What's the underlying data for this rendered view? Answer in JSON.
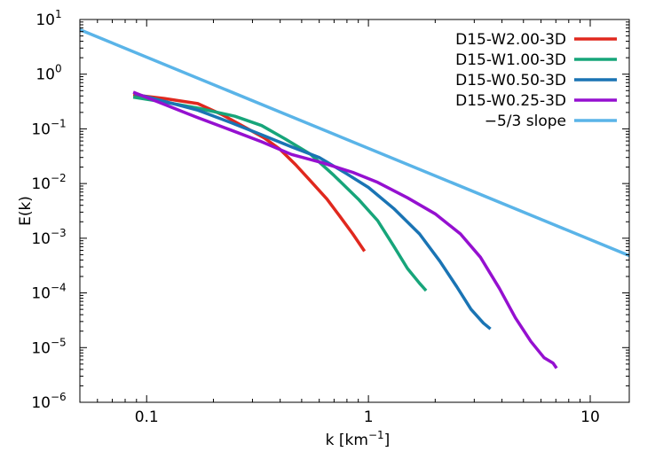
{
  "chart_data": {
    "type": "line",
    "title": "",
    "xlabel": "k [km",
    "xlabel_sup": "−1",
    "xlabel_tail": "]",
    "ylabel": "E(k)",
    "xscale": "log",
    "yscale": "log",
    "xlim": [
      0.05,
      15
    ],
    "ylim": [
      1e-06,
      10
    ],
    "grid": false,
    "legend_position": "top-right",
    "x_ticks": [
      {
        "value": 0.1,
        "label": "0.1"
      },
      {
        "value": 1,
        "label": "1"
      },
      {
        "value": 10,
        "label": "10"
      }
    ],
    "y_ticks": [
      {
        "value": 1e-06,
        "base": "10",
        "exp": "−6"
      },
      {
        "value": 1e-05,
        "base": "10",
        "exp": "−5"
      },
      {
        "value": 0.0001,
        "base": "10",
        "exp": "−4"
      },
      {
        "value": 0.001,
        "base": "10",
        "exp": "−3"
      },
      {
        "value": 0.01,
        "base": "10",
        "exp": "−2"
      },
      {
        "value": 0.1,
        "base": "10",
        "exp": "−1"
      },
      {
        "value": 1,
        "base": "10",
        "exp": "0"
      },
      {
        "value": 10,
        "base": "10",
        "exp": "1"
      }
    ],
    "series": [
      {
        "name": "D15-W2.00-3D",
        "color": "#e0281e",
        "points": [
          [
            0.087,
            0.42
          ],
          [
            0.12,
            0.36
          ],
          [
            0.17,
            0.29
          ],
          [
            0.22,
            0.18
          ],
          [
            0.28,
            0.105
          ],
          [
            0.34,
            0.068
          ],
          [
            0.4,
            0.042
          ],
          [
            0.47,
            0.022
          ],
          [
            0.55,
            0.011
          ],
          [
            0.65,
            0.0052
          ],
          [
            0.75,
            0.0024
          ],
          [
            0.85,
            0.0012
          ],
          [
            0.96,
            0.00058
          ]
        ]
      },
      {
        "name": "D15-W1.00-3D",
        "color": "#17a57a",
        "points": [
          [
            0.087,
            0.38
          ],
          [
            0.12,
            0.31
          ],
          [
            0.17,
            0.24
          ],
          [
            0.25,
            0.17
          ],
          [
            0.33,
            0.115
          ],
          [
            0.42,
            0.066
          ],
          [
            0.55,
            0.034
          ],
          [
            0.7,
            0.014
          ],
          [
            0.9,
            0.0052
          ],
          [
            1.1,
            0.0021
          ],
          [
            1.3,
            0.00072
          ],
          [
            1.5,
            0.00028
          ],
          [
            1.7,
            0.00015
          ],
          [
            1.82,
            0.00011
          ]
        ]
      },
      {
        "name": "D15-W0.50-3D",
        "color": "#1a74b4",
        "points": [
          [
            0.088,
            0.44
          ],
          [
            0.12,
            0.32
          ],
          [
            0.17,
            0.22
          ],
          [
            0.24,
            0.13
          ],
          [
            0.33,
            0.078
          ],
          [
            0.45,
            0.047
          ],
          [
            0.6,
            0.03
          ],
          [
            0.8,
            0.015
          ],
          [
            1.0,
            0.0085
          ],
          [
            1.3,
            0.0035
          ],
          [
            1.7,
            0.0012
          ],
          [
            2.1,
            0.00038
          ],
          [
            2.5,
            0.00013
          ],
          [
            2.9,
            5e-05
          ],
          [
            3.3,
            2.8e-05
          ],
          [
            3.55,
            2.2e-05
          ]
        ]
      },
      {
        "name": "D15-W0.25-3D",
        "color": "#9510d0",
        "points": [
          [
            0.087,
            0.47
          ],
          [
            0.12,
            0.28
          ],
          [
            0.17,
            0.16
          ],
          [
            0.24,
            0.095
          ],
          [
            0.33,
            0.058
          ],
          [
            0.45,
            0.034
          ],
          [
            0.62,
            0.024
          ],
          [
            0.85,
            0.016
          ],
          [
            1.1,
            0.0105
          ],
          [
            1.5,
            0.0055
          ],
          [
            2.0,
            0.0028
          ],
          [
            2.6,
            0.0012
          ],
          [
            3.2,
            0.00045
          ],
          [
            3.9,
            0.00012
          ],
          [
            4.6,
            3.5e-05
          ],
          [
            5.4,
            1.3e-05
          ],
          [
            6.2,
            6.5e-06
          ],
          [
            6.8,
            5.2e-06
          ],
          [
            7.05,
            4.2e-06
          ]
        ]
      },
      {
        "name": "−5/3 slope",
        "color": "#5ab4e8",
        "points": [
          [
            0.05,
            6.5
          ],
          [
            15,
            0.00048
          ]
        ]
      }
    ]
  }
}
